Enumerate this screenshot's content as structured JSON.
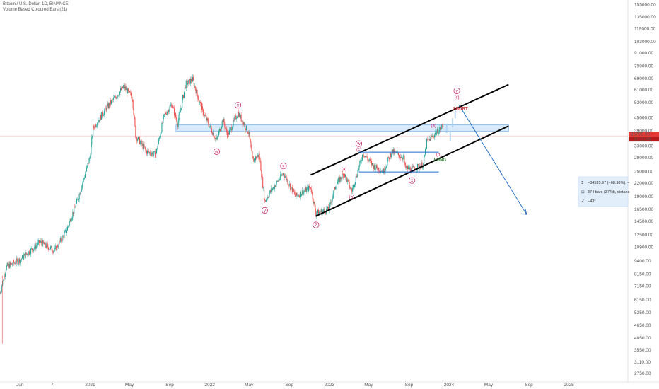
{
  "header": {
    "title": "Bitcoin / U.S. Dollar, 1D, BINANCE",
    "indicator": "Volume Based Coloured Bars (21)"
  },
  "colors": {
    "up": "#26a69a",
    "down": "#ef5350",
    "wave": "#c2185b",
    "zone": "#90c2f0",
    "projection": "#1565c0",
    "price_badge": "#e53935"
  },
  "chart_data": {
    "type": "candlestick",
    "y_scale": "log",
    "ylim": [
      2500,
      160000
    ],
    "xlim": [
      "2020-04-01",
      "2025-06-30"
    ],
    "y_ticks": [
      "155000.00",
      "135000.00",
      "119000.00",
      "103000.00",
      "91000.00",
      "79000.00",
      "69000.00",
      "61000.00",
      "53000.00",
      "45000.00",
      "39000.00",
      "33000.00",
      "29000.00",
      "25000.00",
      "22000.00",
      "19000.00",
      "16500.00",
      "14500.00",
      "12500.00",
      "10900.00",
      "9400.00",
      "8150.00",
      "7150.00",
      "6150.00",
      "5350.00",
      "4650.00",
      "4050.00",
      "3550.00",
      "3110.00",
      "2750.00"
    ],
    "x_ticks": [
      {
        "label": "Jun",
        "date": "2020-06-01"
      },
      {
        "label": "7",
        "date": "2020-09-07"
      },
      {
        "label": "2021",
        "date": "2021-01-01"
      },
      {
        "label": "May",
        "date": "2021-05-01"
      },
      {
        "label": "Sep",
        "date": "2021-09-01"
      },
      {
        "label": "2022",
        "date": "2022-01-01"
      },
      {
        "label": "May",
        "date": "2022-05-01"
      },
      {
        "label": "Sep",
        "date": "2022-09-01"
      },
      {
        "label": "2023",
        "date": "2023-01-01"
      },
      {
        "label": "May",
        "date": "2023-05-01"
      },
      {
        "label": "Sep",
        "date": "2023-09-01"
      },
      {
        "label": "2024",
        "date": "2024-01-01"
      },
      {
        "label": "May",
        "date": "2024-05-01"
      },
      {
        "label": "Sep",
        "date": "2024-09-01"
      },
      {
        "label": "2025",
        "date": "2025-01-01"
      }
    ],
    "price_path": [
      [
        "2020-04-01",
        6600
      ],
      [
        "2020-04-20",
        8800
      ],
      [
        "2020-06-01",
        9500
      ],
      [
        "2020-08-01",
        11500
      ],
      [
        "2020-09-15",
        10500
      ],
      [
        "2020-10-20",
        13000
      ],
      [
        "2020-11-25",
        18500
      ],
      [
        "2020-12-31",
        29000
      ],
      [
        "2021-01-10",
        40000
      ],
      [
        "2021-02-20",
        50000
      ],
      [
        "2021-04-14",
        63000
      ],
      [
        "2021-05-10",
        56000
      ],
      [
        "2021-05-20",
        37000
      ],
      [
        "2021-06-22",
        31000
      ],
      [
        "2021-07-20",
        30000
      ],
      [
        "2021-08-15",
        46000
      ],
      [
        "2021-09-07",
        52000
      ],
      [
        "2021-09-25",
        42000
      ],
      [
        "2021-10-20",
        65000
      ],
      [
        "2021-11-10",
        68000
      ],
      [
        "2021-12-10",
        48000
      ],
      [
        "2022-01-22",
        35000
      ],
      [
        "2022-02-10",
        44000
      ],
      [
        "2022-02-25",
        37000
      ],
      [
        "2022-03-28",
        47500
      ],
      [
        "2022-04-30",
        38000
      ],
      [
        "2022-05-12",
        28000
      ],
      [
        "2022-06-01",
        30000
      ],
      [
        "2022-06-18",
        18000
      ],
      [
        "2022-07-05",
        20000
      ],
      [
        "2022-08-14",
        24500
      ],
      [
        "2022-09-20",
        19000
      ],
      [
        "2022-11-05",
        21000
      ],
      [
        "2022-11-21",
        15800
      ],
      [
        "2022-12-31",
        16500
      ],
      [
        "2023-01-20",
        21500
      ],
      [
        "2023-02-15",
        24500
      ],
      [
        "2023-03-10",
        20000
      ],
      [
        "2023-04-14",
        30500
      ],
      [
        "2023-05-15",
        26500
      ],
      [
        "2023-06-15",
        25000
      ],
      [
        "2023-07-10",
        31000
      ],
      [
        "2023-08-16",
        29000
      ],
      [
        "2023-08-20",
        26000
      ],
      [
        "2023-09-10",
        25500
      ],
      [
        "2023-10-15",
        27000
      ],
      [
        "2023-10-25",
        34500
      ],
      [
        "2023-11-15",
        37000
      ],
      [
        "2023-12-04",
        39500
      ],
      [
        "2023-12-15",
        41500
      ]
    ],
    "annotations": [
      {
        "text": "x",
        "type": "circle",
        "date": "2022-03-28",
        "price": 51500
      },
      {
        "text": "w",
        "type": "circle",
        "date": "2022-01-22",
        "price": 31000
      },
      {
        "text": "x",
        "type": "circle",
        "date": "2022-08-14",
        "price": 26500
      },
      {
        "text": "y",
        "type": "circle",
        "date": "2022-06-18",
        "price": 16300
      },
      {
        "text": "z",
        "type": "circle",
        "date": "2022-11-21",
        "price": 13900
      },
      {
        "text": "w",
        "type": "circle",
        "date": "2023-04-01",
        "price": 33800
      },
      {
        "text": "(c)",
        "type": "text",
        "date": "2023-04-01",
        "price": 31300
      },
      {
        "text": "(a)",
        "type": "text",
        "date": "2023-02-15",
        "price": 25200
      },
      {
        "text": "(b)",
        "type": "text",
        "date": "2023-03-10",
        "price": 18600
      },
      {
        "text": "x",
        "type": "circle",
        "date": "2023-09-10",
        "price": 22600
      },
      {
        "text": "(a)",
        "type": "text",
        "date": "2023-11-15",
        "price": 40500
      },
      {
        "text": "(b)",
        "type": "text",
        "date": "2023-12-01",
        "price": 29600
      },
      {
        "text": "LONG",
        "type": "text",
        "date": "2023-12-05",
        "price": 27900
      },
      {
        "text": "y",
        "type": "circle",
        "date": "2024-01-25",
        "price": 60200
      },
      {
        "text": "(c)",
        "type": "text",
        "date": "2024-01-25",
        "price": 55200
      },
      {
        "text": "SHORT",
        "type": "text",
        "date": "2024-02-05",
        "price": 48800
      }
    ],
    "channel": {
      "upper": [
        [
          "2022-11-05",
          24000
        ],
        [
          "2024-07-01",
          64500
        ]
      ],
      "lower": [
        [
          "2022-11-21",
          15300
        ],
        [
          "2024-07-01",
          41000
        ]
      ]
    },
    "horizontal_lines": [
      {
        "from": "2023-04-01",
        "to": "2023-12-01",
        "price": 30800
      },
      {
        "from": "2023-04-01",
        "to": "2023-12-01",
        "price": 24800
      }
    ],
    "zone": {
      "from": "2021-09-20",
      "to": "2024-07-01",
      "top": 41500,
      "bottom": 38800
    },
    "projection": {
      "from": [
        "2024-02-01",
        51500
      ],
      "to": [
        "2024-08-25",
        15600
      ]
    },
    "forecast_bars": [
      [
        "2023-12-25",
        40000
      ],
      [
        "2024-01-05",
        36500
      ],
      [
        "2024-01-12",
        42500
      ],
      [
        "2024-01-20",
        47000
      ]
    ],
    "current_price": {
      "value": "36799.96",
      "countdown": "10:11:46",
      "price": 36799.96
    },
    "measure_box": {
      "line1": "−34535.97 (−68.98%), −",
      "line2": "374 bars (374d), distanc",
      "line3": "−43°"
    }
  }
}
